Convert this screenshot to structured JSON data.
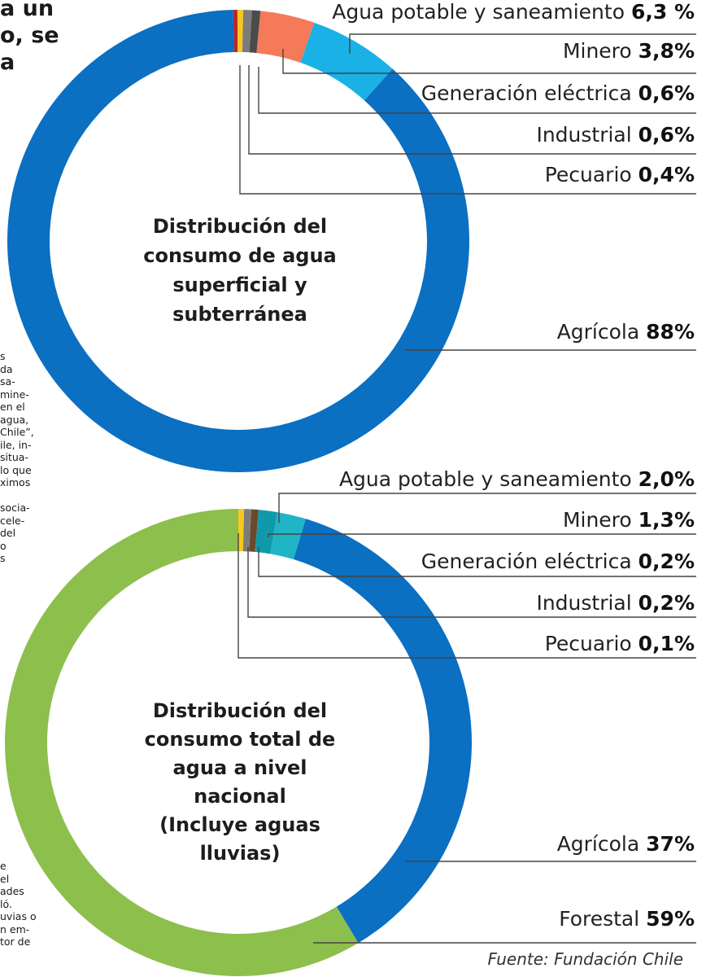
{
  "side_text": {
    "heading_lines": [
      "a un",
      "o, se",
      "a"
    ],
    "upper_lines": [
      "s",
      "da",
      " sa-",
      "mine-",
      "en el",
      "agua,",
      "Chile”,",
      "ile, in-",
      "situa-",
      "lo que",
      "ximos",
      "",
      "socia-",
      "cele-",
      "del",
      "o",
      "s"
    ],
    "lower_lines": [
      "e",
      "el",
      "ades",
      "ló.",
      "uvias o",
      "n em-",
      "tor de"
    ]
  },
  "colors": {
    "agricola": "#0b6fc2",
    "forestal": "#8dbf4c",
    "agua_potable_1": "#1ab1e6",
    "agua_potable_2": "#1fb5c6",
    "minero": "#f47a59",
    "minero_2": "#0f9aab",
    "generacion": "#4b4b4b",
    "industrial": "#7c7c7c",
    "pecuario": "#f7c81c",
    "other": "#b8262e",
    "leader": "#444444"
  },
  "chart_data": [
    {
      "type": "pie",
      "donut": true,
      "title_lines": [
        "Distribución del",
        "consumo de agua",
        "superficial y",
        "subterránea"
      ],
      "labels": [
        "Agua potable y saneamiento",
        "Minero",
        "Generación eléctrica",
        "Industrial",
        "Pecuario",
        "Agrícola"
      ],
      "values": [
        6.3,
        3.8,
        0.6,
        0.6,
        0.4,
        88
      ],
      "value_labels": [
        "6,3 %",
        "3,8%",
        "0,6%",
        "0,6%",
        "0,4%",
        "88%"
      ]
    },
    {
      "type": "pie",
      "donut": true,
      "title_lines": [
        "Distribución del",
        "consumo total de",
        "agua a nivel",
        "nacional",
        "(Incluye aguas",
        "lluvias)"
      ],
      "labels": [
        "Agua potable y saneamiento",
        "Minero",
        "Generación eléctrica",
        "Industrial",
        "Pecuario",
        "Agrícola",
        "Forestal"
      ],
      "values": [
        2.0,
        1.3,
        0.2,
        0.2,
        0.1,
        37,
        59
      ],
      "value_labels": [
        "2,0%",
        "1,3%",
        "0,2%",
        "0,2%",
        "0,1%",
        "37%",
        "59%"
      ]
    }
  ],
  "source": "Fuente: Fundación Chile"
}
